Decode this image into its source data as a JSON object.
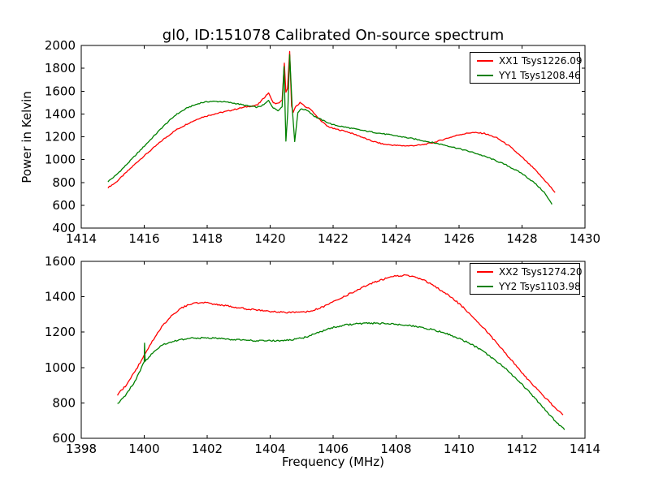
{
  "figure": {
    "background": "#ffffff"
  },
  "chart_data": [
    {
      "type": "line",
      "title": "gl0, ID:151078 Calibrated On-source spectrum",
      "xlabel": "",
      "ylabel": "Power in Kelvin",
      "xlim": [
        1414,
        1430
      ],
      "ylim": [
        400,
        2000
      ],
      "xticks": [
        1414,
        1416,
        1418,
        1420,
        1422,
        1424,
        1426,
        1428,
        1430
      ],
      "yticks": [
        400,
        600,
        800,
        1000,
        1200,
        1400,
        1600,
        1800,
        2000
      ],
      "grid": false,
      "legend_position": "upper right",
      "series": [
        {
          "name": "XX1 Tsys1226.09",
          "color": "#ff0000",
          "points": [
            [
              1414.85,
              755
            ],
            [
              1415.1,
              800
            ],
            [
              1415.4,
              880
            ],
            [
              1415.8,
              985
            ],
            [
              1416.2,
              1080
            ],
            [
              1416.6,
              1175
            ],
            [
              1417.0,
              1258
            ],
            [
              1417.4,
              1318
            ],
            [
              1417.8,
              1368
            ],
            [
              1418.2,
              1398
            ],
            [
              1418.6,
              1422
            ],
            [
              1419.0,
              1448
            ],
            [
              1419.3,
              1465
            ],
            [
              1419.6,
              1478
            ],
            [
              1419.8,
              1540
            ],
            [
              1419.95,
              1585
            ],
            [
              1420.1,
              1495
            ],
            [
              1420.25,
              1492
            ],
            [
              1420.38,
              1520
            ],
            [
              1420.45,
              1845
            ],
            [
              1420.5,
              1590
            ],
            [
              1420.55,
              1620
            ],
            [
              1420.62,
              1948
            ],
            [
              1420.68,
              1470
            ],
            [
              1420.73,
              1412
            ],
            [
              1420.8,
              1460
            ],
            [
              1420.95,
              1500
            ],
            [
              1421.1,
              1465
            ],
            [
              1421.3,
              1440
            ],
            [
              1421.5,
              1370
            ],
            [
              1421.8,
              1295
            ],
            [
              1422.0,
              1272
            ],
            [
              1422.4,
              1248
            ],
            [
              1422.8,
              1210
            ],
            [
              1423.2,
              1165
            ],
            [
              1423.6,
              1135
            ],
            [
              1424.0,
              1124
            ],
            [
              1424.4,
              1120
            ],
            [
              1424.8,
              1128
            ],
            [
              1425.2,
              1150
            ],
            [
              1425.6,
              1185
            ],
            [
              1426.0,
              1218
            ],
            [
              1426.4,
              1237
            ],
            [
              1426.8,
              1230
            ],
            [
              1427.2,
              1190
            ],
            [
              1427.6,
              1118
            ],
            [
              1428.0,
              1020
            ],
            [
              1428.4,
              915
            ],
            [
              1428.8,
              795
            ],
            [
              1429.05,
              712
            ]
          ]
        },
        {
          "name": "YY1 Tsys1208.46",
          "color": "#008000",
          "points": [
            [
              1414.85,
              808
            ],
            [
              1415.1,
              862
            ],
            [
              1415.4,
              945
            ],
            [
              1415.8,
              1060
            ],
            [
              1416.2,
              1175
            ],
            [
              1416.6,
              1290
            ],
            [
              1417.0,
              1392
            ],
            [
              1417.4,
              1458
            ],
            [
              1417.8,
              1498
            ],
            [
              1418.1,
              1510
            ],
            [
              1418.5,
              1508
            ],
            [
              1418.9,
              1492
            ],
            [
              1419.3,
              1470
            ],
            [
              1419.6,
              1458
            ],
            [
              1419.8,
              1480
            ],
            [
              1419.95,
              1518
            ],
            [
              1420.1,
              1452
            ],
            [
              1420.25,
              1432
            ],
            [
              1420.38,
              1462
            ],
            [
              1420.44,
              1815
            ],
            [
              1420.5,
              1162
            ],
            [
              1420.56,
              1420
            ],
            [
              1420.62,
              1920
            ],
            [
              1420.7,
              1455
            ],
            [
              1420.78,
              1158
            ],
            [
              1420.88,
              1415
            ],
            [
              1421.0,
              1445
            ],
            [
              1421.2,
              1430
            ],
            [
              1421.4,
              1380
            ],
            [
              1421.7,
              1340
            ],
            [
              1422.0,
              1305
            ],
            [
              1422.5,
              1278
            ],
            [
              1423.0,
              1252
            ],
            [
              1423.5,
              1230
            ],
            [
              1424.0,
              1208
            ],
            [
              1424.5,
              1185
            ],
            [
              1425.0,
              1158
            ],
            [
              1425.5,
              1130
            ],
            [
              1426.0,
              1096
            ],
            [
              1426.5,
              1058
            ],
            [
              1427.0,
              1010
            ],
            [
              1427.5,
              952
            ],
            [
              1428.0,
              878
            ],
            [
              1428.4,
              795
            ],
            [
              1428.7,
              715
            ],
            [
              1428.95,
              608
            ]
          ]
        }
      ]
    },
    {
      "type": "line",
      "title": "",
      "xlabel": "Frequency (MHz)",
      "ylabel": "",
      "xlim": [
        1398,
        1414
      ],
      "ylim": [
        600,
        1600
      ],
      "xticks": [
        1398,
        1400,
        1402,
        1404,
        1406,
        1408,
        1410,
        1412,
        1414
      ],
      "yticks": [
        600,
        800,
        1000,
        1200,
        1400,
        1600
      ],
      "grid": false,
      "legend_position": "upper right",
      "series": [
        {
          "name": "XX2 Tsys1274.20",
          "color": "#ff0000",
          "points": [
            [
              1399.15,
              845
            ],
            [
              1399.4,
              895
            ],
            [
              1399.7,
              975
            ],
            [
              1400.0,
              1068
            ],
            [
              1400.3,
              1160
            ],
            [
              1400.6,
              1240
            ],
            [
              1400.9,
              1300
            ],
            [
              1401.2,
              1338
            ],
            [
              1401.5,
              1360
            ],
            [
              1401.8,
              1368
            ],
            [
              1402.1,
              1362
            ],
            [
              1402.5,
              1352
            ],
            [
              1402.9,
              1340
            ],
            [
              1403.3,
              1330
            ],
            [
              1403.7,
              1322
            ],
            [
              1404.1,
              1315
            ],
            [
              1404.5,
              1312
            ],
            [
              1404.9,
              1310
            ],
            [
              1405.3,
              1318
            ],
            [
              1405.7,
              1345
            ],
            [
              1406.1,
              1378
            ],
            [
              1406.5,
              1415
            ],
            [
              1406.9,
              1450
            ],
            [
              1407.3,
              1482
            ],
            [
              1407.7,
              1505
            ],
            [
              1408.0,
              1518
            ],
            [
              1408.3,
              1522
            ],
            [
              1408.6,
              1512
            ],
            [
              1408.9,
              1492
            ],
            [
              1409.2,
              1462
            ],
            [
              1409.5,
              1428
            ],
            [
              1409.8,
              1392
            ],
            [
              1410.1,
              1345
            ],
            [
              1410.4,
              1295
            ],
            [
              1410.7,
              1240
            ],
            [
              1411.0,
              1178
            ],
            [
              1411.4,
              1095
            ],
            [
              1411.8,
              1012
            ],
            [
              1412.2,
              930
            ],
            [
              1412.6,
              855
            ],
            [
              1413.0,
              782
            ],
            [
              1413.3,
              732
            ]
          ]
        },
        {
          "name": "YY2 Tsys1103.98",
          "color": "#008000",
          "points": [
            [
              1399.15,
              792
            ],
            [
              1399.4,
              842
            ],
            [
              1399.7,
              920
            ],
            [
              1400.0,
              1032
            ],
            [
              1400.01,
              1138
            ],
            [
              1400.03,
              1035
            ],
            [
              1400.3,
              1092
            ],
            [
              1400.6,
              1128
            ],
            [
              1400.9,
              1148
            ],
            [
              1401.2,
              1158
            ],
            [
              1401.5,
              1165
            ],
            [
              1401.9,
              1168
            ],
            [
              1402.3,
              1165
            ],
            [
              1402.7,
              1160
            ],
            [
              1403.1,
              1156
            ],
            [
              1403.5,
              1152
            ],
            [
              1403.9,
              1151
            ],
            [
              1404.3,
              1152
            ],
            [
              1404.7,
              1156
            ],
            [
              1405.1,
              1170
            ],
            [
              1405.5,
              1195
            ],
            [
              1405.9,
              1222
            ],
            [
              1406.3,
              1238
            ],
            [
              1406.7,
              1246
            ],
            [
              1407.1,
              1250
            ],
            [
              1407.5,
              1250
            ],
            [
              1407.9,
              1246
            ],
            [
              1408.3,
              1240
            ],
            [
              1408.7,
              1230
            ],
            [
              1409.1,
              1216
            ],
            [
              1409.5,
              1198
            ],
            [
              1409.9,
              1172
            ],
            [
              1410.3,
              1140
            ],
            [
              1410.7,
              1100
            ],
            [
              1411.1,
              1048
            ],
            [
              1411.5,
              990
            ],
            [
              1411.9,
              922
            ],
            [
              1412.3,
              848
            ],
            [
              1412.7,
              768
            ],
            [
              1413.1,
              690
            ],
            [
              1413.35,
              648
            ]
          ]
        }
      ]
    }
  ]
}
